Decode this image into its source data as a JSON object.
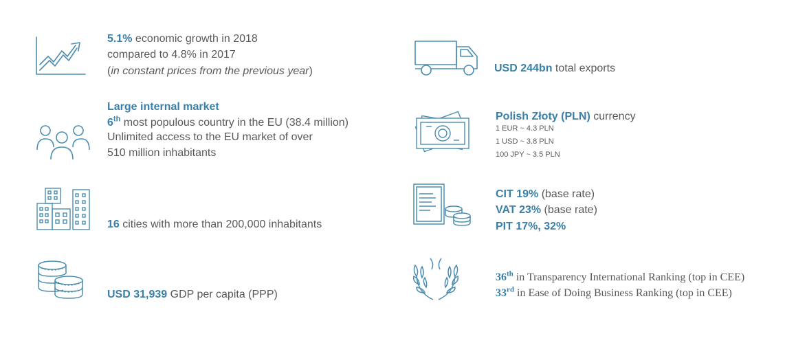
{
  "colors": {
    "accent": "#3a7fa8",
    "text": "#595959",
    "icon": "#4a8db0"
  },
  "items": [
    {
      "icon": "growth-chart-icon",
      "highlight": "5.1%",
      "text": " economic growth in 2018",
      "line2": "compared to 4.8% in 2017",
      "line3_prefix": "(",
      "line3_italic": "in constant prices from the previous year",
      "line3_suffix": ")"
    },
    {
      "icon": "people-group-icon",
      "heading": "Large internal market",
      "rank_num": "6",
      "rank_sup": "th",
      "line1_rest": " most populous  country in the EU (38.4 million)",
      "line2": "Unlimited access to the EU market of over",
      "line3": "510 million inhabitants"
    },
    {
      "icon": "city-buildings-icon",
      "highlight": "16",
      "text": " cities with more than 200,000 inhabitants"
    },
    {
      "icon": "coins-icon",
      "highlight": "USD 31,939",
      "text": " GDP per capita (PPP)"
    },
    {
      "icon": "delivery-truck-icon",
      "highlight": "USD 244bn",
      "text": " total exports"
    },
    {
      "icon": "banknotes-icon",
      "highlight": "Polish Złoty (PLN)",
      "text": " currency",
      "rates": [
        "1 EUR  ~ 4.3 PLN",
        "1 USD  ~ 3.8 PLN",
        "100 JPY  ~ 3.5 PLN"
      ]
    },
    {
      "icon": "tax-document-coins-icon",
      "lines": [
        {
          "highlight": "CIT 19%",
          "text": " (base rate)"
        },
        {
          "highlight": "VAT 23%",
          "text": " (base rate)"
        },
        {
          "highlight": "PIT 17%, 32%",
          "text": ""
        }
      ]
    },
    {
      "icon": "laurel-wreath-icon",
      "lines": [
        {
          "num": "36",
          "sup": "th",
          "text": " in Transparency International  Ranking  (top in CEE)"
        },
        {
          "num": "33",
          "sup": "rd",
          "text": " in Ease of Doing Business  Ranking (top in CEE)"
        }
      ]
    }
  ]
}
